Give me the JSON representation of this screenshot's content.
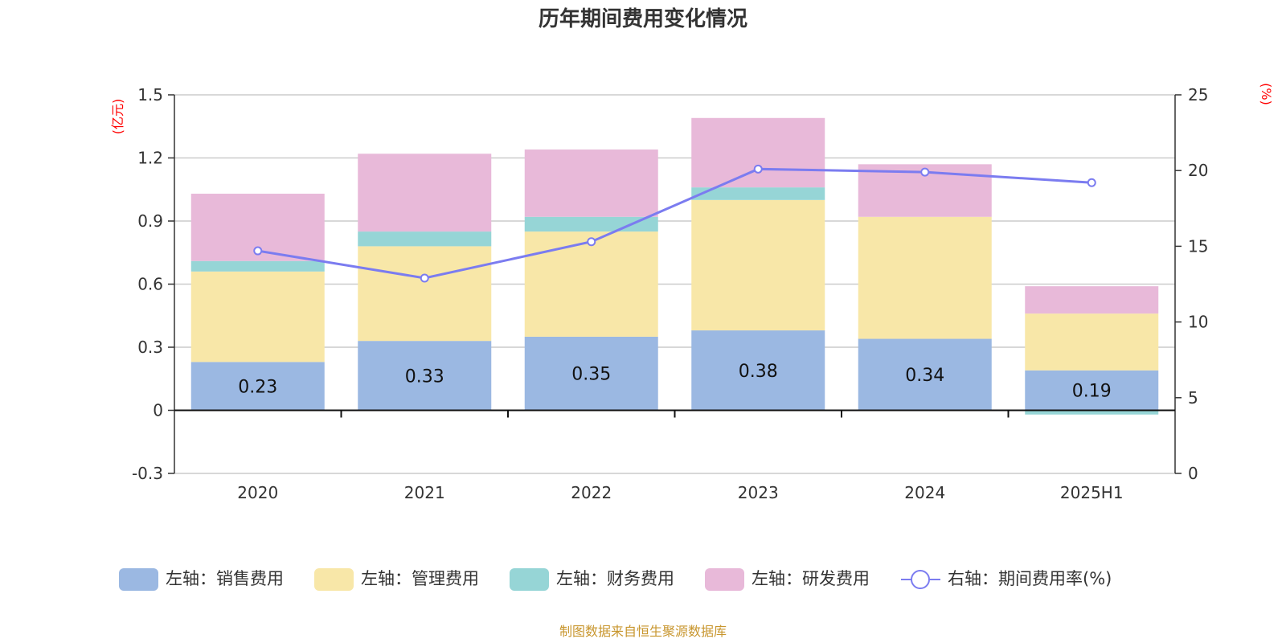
{
  "chart_data": {
    "type": "bar",
    "title": "历年期间费用变化情况",
    "categories": [
      "2020",
      "2021",
      "2022",
      "2023",
      "2024",
      "2025H1"
    ],
    "left_axis": {
      "unit": "(亿元)",
      "range": [
        -0.3,
        1.5
      ],
      "ticks": [
        "-0.3",
        "0",
        "0.3",
        "0.6",
        "0.9",
        "1.2",
        "1.5"
      ]
    },
    "right_axis": {
      "unit": "(%)",
      "range": [
        0,
        25
      ],
      "ticks": [
        "0",
        "5",
        "10",
        "15",
        "20",
        "25"
      ]
    },
    "series": [
      {
        "name": "左轴：销售费用",
        "axis": "left",
        "kind": "bar",
        "color": "#9bb8e2",
        "values": [
          0.23,
          0.33,
          0.35,
          0.38,
          0.34,
          0.19
        ],
        "labels": [
          "0.23",
          "0.33",
          "0.35",
          "0.38",
          "0.34",
          "0.19"
        ]
      },
      {
        "name": "左轴：管理费用",
        "axis": "left",
        "kind": "bar",
        "color": "#f8e7a8",
        "values": [
          0.43,
          0.45,
          0.5,
          0.62,
          0.58,
          0.27
        ]
      },
      {
        "name": "左轴：财务费用",
        "axis": "left",
        "kind": "bar",
        "color": "#96d5d6",
        "values": [
          0.05,
          0.07,
          0.07,
          0.06,
          0.0,
          -0.02
        ]
      },
      {
        "name": "左轴：研发费用",
        "axis": "left",
        "kind": "bar",
        "color": "#e8b9d9",
        "values": [
          0.32,
          0.37,
          0.32,
          0.33,
          0.25,
          0.13
        ]
      },
      {
        "name": "右轴：期间费用率(%)",
        "axis": "right",
        "kind": "line",
        "color": "#7b7cf0",
        "values": [
          14.7,
          12.9,
          15.3,
          20.1,
          19.9,
          19.2
        ]
      }
    ],
    "grid": true,
    "legend": "bottom"
  },
  "footnote": "制图数据来自恒生聚源数据库"
}
